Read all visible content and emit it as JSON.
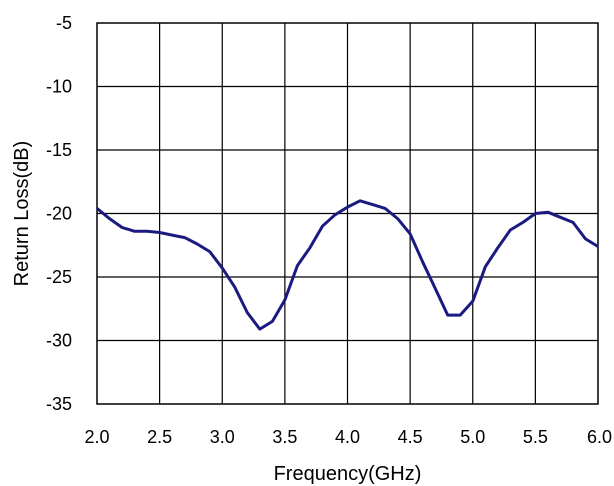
{
  "chart_data": {
    "type": "line",
    "title": "",
    "xlabel": "Frequency(GHz)",
    "ylabel": "Return Loss(dB)",
    "xlim": [
      2.0,
      6.0
    ],
    "ylim": [
      -35,
      -5
    ],
    "x_ticks": [
      "2.0",
      "2.5",
      "3.0",
      "3.5",
      "4.0",
      "4.5",
      "5.0",
      "5.5",
      "6.0"
    ],
    "y_ticks": [
      "-5",
      "-10",
      "-15",
      "-20",
      "-25",
      "-30",
      "-35"
    ],
    "grid": true,
    "legend": "none",
    "line_color": "#1a1a80",
    "series": [
      {
        "x": [
          2.0,
          2.1,
          2.2,
          2.3,
          2.4,
          2.5,
          2.6,
          2.7,
          2.8,
          2.9,
          3.0,
          3.1,
          3.2,
          3.3,
          3.4,
          3.5,
          3.6,
          3.7,
          3.8,
          3.9,
          4.0,
          4.1,
          4.2,
          4.3,
          4.4,
          4.5,
          4.6,
          4.7,
          4.8,
          4.9,
          5.0,
          5.1,
          5.2,
          5.3,
          5.4,
          5.5,
          5.6,
          5.7,
          5.8,
          5.9,
          6.0
        ],
        "values": [
          -19.6,
          -20.4,
          -21.1,
          -21.4,
          -21.4,
          -21.5,
          -21.7,
          -21.9,
          -22.4,
          -23.0,
          -24.3,
          -25.8,
          -27.8,
          -29.1,
          -28.5,
          -26.8,
          -24.1,
          -22.7,
          -21.0,
          -20.1,
          -19.5,
          -19.0,
          -19.3,
          -19.6,
          -20.4,
          -21.6,
          -23.8,
          -25.9,
          -28.0,
          -28.0,
          -26.9,
          -24.2,
          -22.7,
          -21.3,
          -20.7,
          -20.0,
          -19.9,
          -20.3,
          -20.7,
          -22.0,
          -22.6
        ]
      }
    ]
  }
}
